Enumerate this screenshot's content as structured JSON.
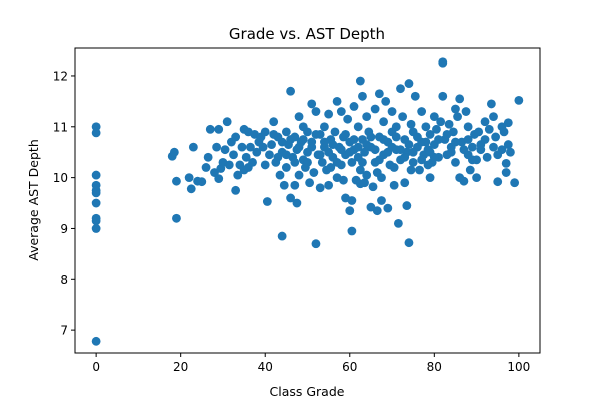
{
  "chart_data": {
    "type": "scatter",
    "title": "Grade vs. AST Depth",
    "xlabel": "Class Grade",
    "ylabel": "Average AST Depth",
    "xlim": [
      -5,
      105
    ],
    "ylim": [
      6.55,
      12.55
    ],
    "xticks": [
      0,
      20,
      40,
      60,
      80,
      100
    ],
    "yticks": [
      7,
      8,
      9,
      10,
      11,
      12
    ],
    "grid": false,
    "marker_color": "#1f77b4",
    "points": [
      [
        0,
        11.0
      ],
      [
        0,
        10.88
      ],
      [
        0,
        10.05
      ],
      [
        0,
        9.85
      ],
      [
        0,
        9.75
      ],
      [
        0,
        9.7
      ],
      [
        0,
        9.5
      ],
      [
        0,
        9.2
      ],
      [
        0,
        9.15
      ],
      [
        0,
        9.0
      ],
      [
        0,
        6.78
      ],
      [
        18,
        10.42
      ],
      [
        18.5,
        10.5
      ],
      [
        19,
        9.93
      ],
      [
        19,
        9.2
      ],
      [
        22,
        10.0
      ],
      [
        22.5,
        9.78
      ],
      [
        23,
        10.6
      ],
      [
        24,
        9.93
      ],
      [
        25,
        9.92
      ],
      [
        26,
        10.2
      ],
      [
        26.5,
        10.4
      ],
      [
        27,
        10.95
      ],
      [
        28,
        10.1
      ],
      [
        28.5,
        10.6
      ],
      [
        29,
        9.98
      ],
      [
        29,
        10.95
      ],
      [
        29.5,
        10.18
      ],
      [
        30,
        10.3
      ],
      [
        30.5,
        10.55
      ],
      [
        31,
        11.1
      ],
      [
        31.5,
        10.25
      ],
      [
        32,
        10.7
      ],
      [
        32.5,
        10.45
      ],
      [
        33,
        9.75
      ],
      [
        33,
        10.8
      ],
      [
        33.5,
        10.05
      ],
      [
        34,
        10.25
      ],
      [
        34.5,
        10.6
      ],
      [
        35,
        10.15
      ],
      [
        35,
        10.95
      ],
      [
        35.5,
        10.4
      ],
      [
        36,
        10.9
      ],
      [
        36,
        10.2
      ],
      [
        36.5,
        10.6
      ],
      [
        37,
        10.3
      ],
      [
        37.5,
        10.85
      ],
      [
        38,
        10.5
      ],
      [
        38.5,
        10.7
      ],
      [
        39,
        10.8
      ],
      [
        39.5,
        10.6
      ],
      [
        40,
        10.25
      ],
      [
        40,
        10.9
      ],
      [
        40.5,
        9.53
      ],
      [
        41,
        10.45
      ],
      [
        41.5,
        10.65
      ],
      [
        42,
        11.1
      ],
      [
        42.5,
        10.3
      ],
      [
        43,
        10.8
      ],
      [
        43.5,
        10.05
      ],
      [
        44,
        10.5
      ],
      [
        44,
        8.85
      ],
      [
        44.5,
        9.85
      ],
      [
        45,
        10.9
      ],
      [
        45,
        10.2
      ],
      [
        45.5,
        10.65
      ],
      [
        46,
        11.7
      ],
      [
        46,
        9.6
      ],
      [
        46.5,
        10.4
      ],
      [
        47,
        10.8
      ],
      [
        47,
        9.85
      ],
      [
        47.5,
        9.5
      ],
      [
        47.5,
        10.55
      ],
      [
        48,
        11.2
      ],
      [
        48,
        10.05
      ],
      [
        48.5,
        10.7
      ],
      [
        49,
        10.35
      ],
      [
        49,
        11.0
      ],
      [
        49.5,
        10.2
      ],
      [
        50,
        10.9
      ],
      [
        50,
        10.5
      ],
      [
        50.5,
        9.9
      ],
      [
        51,
        11.45
      ],
      [
        51,
        10.7
      ],
      [
        51.5,
        10.1
      ],
      [
        52,
        11.3
      ],
      [
        52,
        8.7
      ],
      [
        52.5,
        10.45
      ],
      [
        53,
        10.85
      ],
      [
        53,
        9.8
      ],
      [
        53.5,
        10.3
      ],
      [
        54,
        11.0
      ],
      [
        54,
        10.6
      ],
      [
        54.5,
        10.15
      ],
      [
        55,
        11.25
      ],
      [
        55,
        9.85
      ],
      [
        55.5,
        10.75
      ],
      [
        56,
        10.4
      ],
      [
        56.5,
        10.9
      ],
      [
        57,
        11.5
      ],
      [
        57,
        10.0
      ],
      [
        57.5,
        10.6
      ],
      [
        58,
        11.3
      ],
      [
        58,
        10.25
      ],
      [
        58.5,
        10.8
      ],
      [
        59,
        10.45
      ],
      [
        59,
        9.6
      ],
      [
        59.5,
        11.15
      ],
      [
        60,
        9.35
      ],
      [
        60,
        10.7
      ],
      [
        60.5,
        8.95
      ],
      [
        60.5,
        10.3
      ],
      [
        61,
        11.4
      ],
      [
        61,
        10.55
      ],
      [
        61.5,
        9.95
      ],
      [
        62,
        11.0
      ],
      [
        62,
        10.4
      ],
      [
        62.5,
        11.9
      ],
      [
        62.5,
        10.15
      ],
      [
        63,
        10.75
      ],
      [
        63,
        11.6
      ],
      [
        63.5,
        10.5
      ],
      [
        64,
        11.2
      ],
      [
        64,
        10.05
      ],
      [
        64.5,
        10.9
      ],
      [
        65,
        9.42
      ],
      [
        65,
        10.6
      ],
      [
        65.5,
        9.82
      ],
      [
        66,
        11.35
      ],
      [
        66,
        10.3
      ],
      [
        66.5,
        9.35
      ],
      [
        67,
        11.65
      ],
      [
        67,
        10.8
      ],
      [
        67.5,
        10.0
      ],
      [
        68,
        11.1
      ],
      [
        68,
        10.45
      ],
      [
        68.5,
        11.5
      ],
      [
        69,
        10.7
      ],
      [
        69,
        9.4
      ],
      [
        69.5,
        10.25
      ],
      [
        70,
        11.3
      ],
      [
        70,
        10.9
      ],
      [
        70.5,
        9.85
      ],
      [
        71,
        11.0
      ],
      [
        71,
        10.55
      ],
      [
        71.5,
        9.1
      ],
      [
        72,
        11.75
      ],
      [
        72,
        10.35
      ],
      [
        72.5,
        11.2
      ],
      [
        73,
        10.75
      ],
      [
        73,
        9.9
      ],
      [
        73.5,
        10.5
      ],
      [
        74,
        11.85
      ],
      [
        74,
        8.72
      ],
      [
        74.5,
        11.05
      ],
      [
        75,
        10.3
      ],
      [
        75,
        10.9
      ],
      [
        75.5,
        11.6
      ],
      [
        76,
        10.6
      ],
      [
        76.5,
        10.15
      ],
      [
        77,
        11.3
      ],
      [
        77,
        10.7
      ],
      [
        77.5,
        10.45
      ],
      [
        78,
        11.0
      ],
      [
        78.5,
        10.55
      ],
      [
        79,
        10.85
      ],
      [
        79,
        10.0
      ],
      [
        79.5,
        10.3
      ],
      [
        80,
        11.2
      ],
      [
        80,
        10.65
      ],
      [
        80.5,
        10.95
      ],
      [
        81,
        10.4
      ],
      [
        81.5,
        11.1
      ],
      [
        82,
        12.25
      ],
      [
        82,
        12.28
      ],
      [
        82,
        11.6
      ],
      [
        82.5,
        10.75
      ],
      [
        83,
        10.45
      ],
      [
        83.5,
        11.05
      ],
      [
        84,
        10.6
      ],
      [
        84.5,
        10.9
      ],
      [
        85,
        11.35
      ],
      [
        85,
        10.3
      ],
      [
        85.5,
        11.2
      ],
      [
        86,
        11.55
      ],
      [
        86,
        10.0
      ],
      [
        86.5,
        10.7
      ],
      [
        87,
        9.93
      ],
      [
        87.5,
        11.3
      ],
      [
        88,
        10.45
      ],
      [
        88,
        11.0
      ],
      [
        88.5,
        10.15
      ],
      [
        89,
        10.6
      ],
      [
        89.5,
        10.85
      ],
      [
        90,
        10.0
      ],
      [
        90,
        10.35
      ],
      [
        90.5,
        10.9
      ],
      [
        91,
        10.55
      ],
      [
        92,
        10.75
      ],
      [
        92.5,
        10.4
      ],
      [
        93,
        10.95
      ],
      [
        93.5,
        11.45
      ],
      [
        94,
        10.6
      ],
      [
        94,
        11.2
      ],
      [
        94.5,
        10.8
      ],
      [
        95,
        9.92
      ],
      [
        96,
        10.55
      ],
      [
        96.5,
        10.9
      ],
      [
        97,
        10.1
      ],
      [
        97,
        10.28
      ],
      [
        97.5,
        10.65
      ],
      [
        97.5,
        11.08
      ],
      [
        100,
        11.52
      ],
      [
        48,
        10.6
      ],
      [
        49,
        10.75
      ],
      [
        50,
        10.3
      ],
      [
        51,
        10.6
      ],
      [
        52,
        10.85
      ],
      [
        53,
        10.45
      ],
      [
        54,
        10.7
      ],
      [
        55,
        10.5
      ],
      [
        56,
        10.65
      ],
      [
        57,
        10.3
      ],
      [
        58,
        10.55
      ],
      [
        59,
        10.85
      ],
      [
        60,
        10.5
      ],
      [
        61,
        10.75
      ],
      [
        62,
        10.6
      ],
      [
        63,
        10.3
      ],
      [
        64,
        10.65
      ],
      [
        65,
        10.8
      ],
      [
        66,
        10.55
      ],
      [
        67,
        10.35
      ],
      [
        68,
        10.75
      ],
      [
        69,
        10.5
      ],
      [
        70,
        10.6
      ],
      [
        71,
        10.8
      ],
      [
        72,
        10.55
      ],
      [
        73,
        10.4
      ],
      [
        74,
        10.65
      ],
      [
        75,
        10.5
      ],
      [
        76,
        10.8
      ],
      [
        77,
        10.35
      ],
      [
        78,
        10.7
      ],
      [
        79,
        10.5
      ],
      [
        80,
        10.4
      ],
      [
        81,
        10.75
      ],
      [
        83,
        10.85
      ],
      [
        84,
        10.5
      ],
      [
        85,
        10.7
      ],
      [
        87,
        10.55
      ],
      [
        88,
        10.75
      ],
      [
        89,
        10.35
      ],
      [
        91,
        10.65
      ],
      [
        92,
        11.1
      ],
      [
        95,
        10.45
      ],
      [
        96,
        11.0
      ],
      [
        98,
        10.5
      ],
      [
        99,
        9.9
      ],
      [
        42,
        10.85
      ],
      [
        43,
        10.4
      ],
      [
        44,
        10.7
      ],
      [
        45,
        10.45
      ],
      [
        46,
        10.75
      ],
      [
        47,
        10.3
      ],
      [
        55.5,
        10.2
      ],
      [
        58.5,
        9.95
      ],
      [
        62.5,
        9.88
      ],
      [
        66.5,
        10.1
      ],
      [
        70.5,
        10.2
      ],
      [
        74.5,
        10.15
      ],
      [
        78.5,
        10.25
      ],
      [
        63.5,
        9.9
      ],
      [
        67.5,
        9.55
      ],
      [
        60.5,
        9.55
      ],
      [
        73.5,
        9.45
      ]
    ]
  }
}
